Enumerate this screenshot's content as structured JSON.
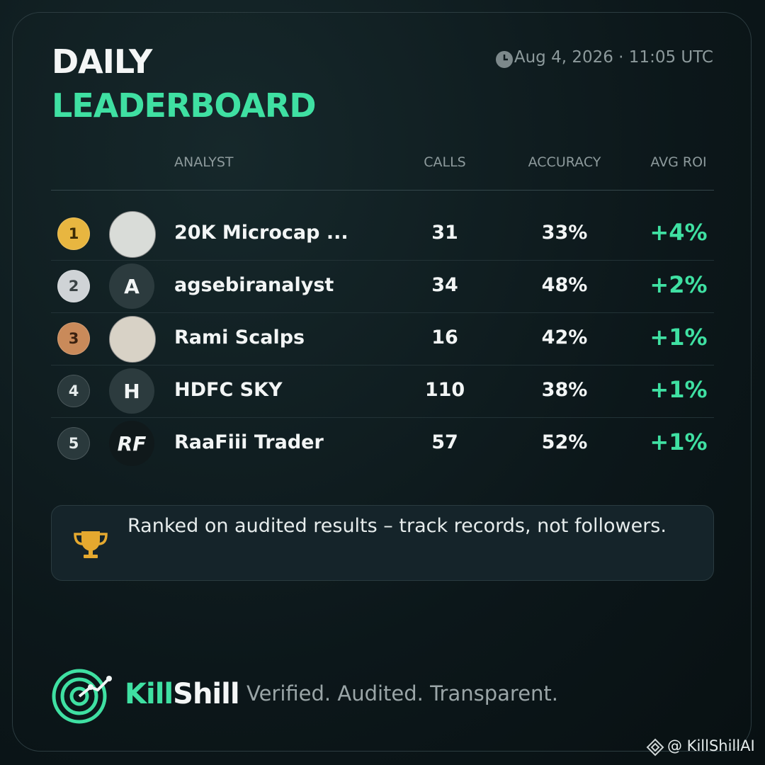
{
  "header": {
    "title_line1": "DAILY",
    "title_line2": "LEADERBOARD",
    "timestamp": "Aug 4, 2026 · 11:05 UTC"
  },
  "table": {
    "columns": [
      "ANALYST",
      "CALLS",
      "ACCURACY",
      "AVG ROI"
    ],
    "rows": [
      {
        "rank": "1",
        "avatar": null,
        "name": "20K Microcap ...",
        "calls": "31",
        "accuracy": "33%",
        "roi": "+4%"
      },
      {
        "rank": "2",
        "avatar": "A",
        "name": "agsebiranalyst",
        "calls": "34",
        "accuracy": "48%",
        "roi": "+2%"
      },
      {
        "rank": "3",
        "avatar": null,
        "name": "Rami Scalps",
        "calls": "16",
        "accuracy": "42%",
        "roi": "+1%"
      },
      {
        "rank": "4",
        "avatar": "H",
        "name": "HDFC SKY",
        "calls": "110",
        "accuracy": "38%",
        "roi": "+1%"
      },
      {
        "rank": "5",
        "avatar": "RF",
        "name": "RaaFiii Trader",
        "calls": "57",
        "accuracy": "52%",
        "roi": "+1%"
      }
    ]
  },
  "note": "Ranked on audited results – track records, not followers.",
  "footer": {
    "brand_part1": "Kill",
    "brand_part2": "Shill",
    "tagline": "Verified. Audited. Transparent.",
    "watermark": "@ KillShillAI"
  }
}
